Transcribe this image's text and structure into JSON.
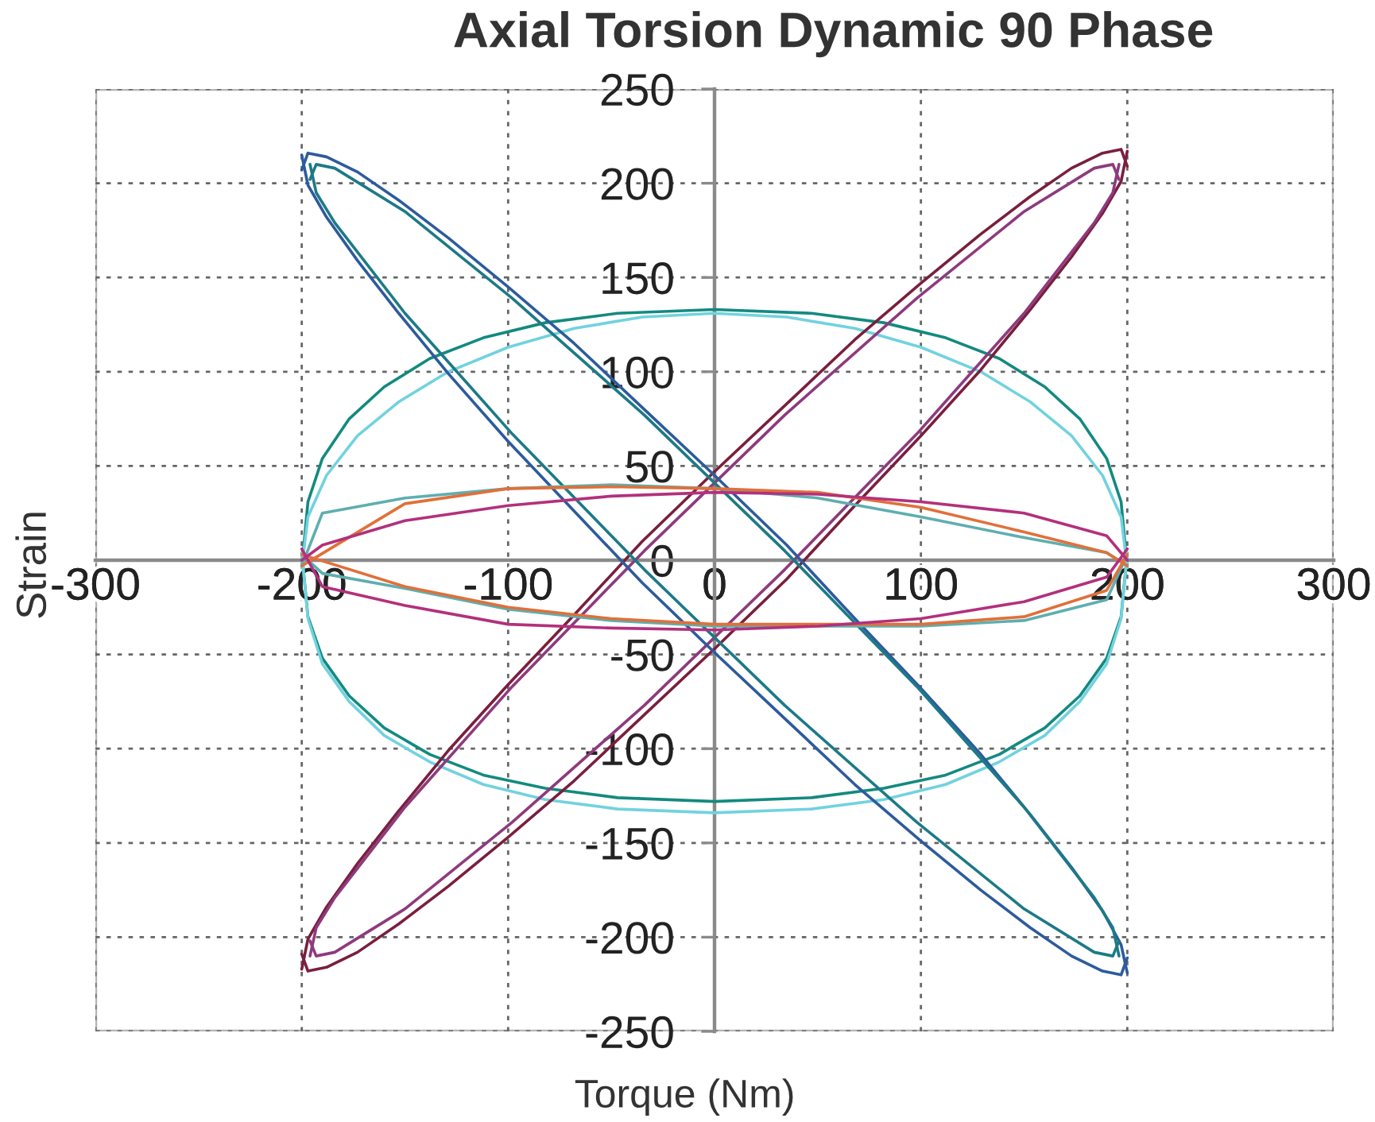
{
  "chart_data": {
    "type": "line",
    "title": "Axial Torsion Dynamic 90 Phase",
    "xlabel": "Torque (Nm)",
    "ylabel": "Strain",
    "xlim": [
      -300,
      300
    ],
    "ylim": [
      -250,
      250
    ],
    "xticks": [
      -300,
      -200,
      -100,
      0,
      100,
      200,
      300
    ],
    "yticks": [
      -250,
      -200,
      -150,
      -100,
      -50,
      0,
      50,
      100,
      150,
      200,
      250
    ],
    "grid": true,
    "series": [
      {
        "color": "#138a7f",
        "x": [
          -200,
          -197,
          -190,
          -177,
          -160,
          -138,
          -112,
          -82,
          -47,
          0,
          47,
          82,
          112,
          138,
          160,
          177,
          190,
          197,
          200
        ],
        "values": [
          -4,
          31,
          54,
          75,
          92,
          107,
          118,
          126,
          131,
          133,
          131,
          126,
          118,
          107,
          92,
          75,
          54,
          31,
          -4
        ]
      },
      {
        "color": "#138a7f",
        "x": [
          -200,
          -197,
          -190,
          -177,
          -160,
          -138,
          -112,
          -82,
          -47,
          0,
          47,
          82,
          112,
          138,
          160,
          177,
          190,
          197,
          200
        ],
        "values": [
          4,
          -30,
          -52,
          -72,
          -89,
          -103,
          -114,
          -121,
          -126,
          -128,
          -126,
          -121,
          -114,
          -103,
          -89,
          -72,
          -52,
          -30,
          4
        ]
      },
      {
        "color": "#72d2df",
        "x": [
          -200,
          -197,
          -188,
          -173,
          -153,
          -129,
          -100,
          -68,
          -35,
          0,
          35,
          68,
          100,
          129,
          153,
          173,
          188,
          197,
          200
        ],
        "values": [
          -4,
          23,
          45,
          66,
          84,
          100,
          113,
          123,
          129,
          131,
          129,
          123,
          113,
          100,
          84,
          66,
          45,
          23,
          -4
        ]
      },
      {
        "color": "#72d2df",
        "x": [
          -200,
          -197,
          -190,
          -177,
          -160,
          -138,
          -112,
          -82,
          -47,
          0,
          47,
          82,
          112,
          138,
          160,
          177,
          190,
          197,
          200
        ],
        "values": [
          4,
          -31,
          -55,
          -75,
          -93,
          -107,
          -119,
          -127,
          -132,
          -134,
          -132,
          -127,
          -119,
          -107,
          -93,
          -75,
          -55,
          -31,
          4
        ]
      },
      {
        "color": "#7a1f3d",
        "x": [
          -200,
          -197,
          -188,
          -173,
          -153,
          -129,
          -100,
          -68,
          -35,
          0,
          35,
          68,
          100,
          129,
          153,
          173,
          188,
          197,
          200
        ],
        "values": [
          -217,
          -201,
          -184,
          -161,
          -133,
          -101,
          -66,
          -29,
          10,
          47,
          83,
          117,
          147,
          173,
          193,
          208,
          216,
          218,
          209
        ]
      },
      {
        "color": "#7a1f3d",
        "x": [
          -200,
          -197,
          -188,
          -173,
          -153,
          -129,
          -100,
          -68,
          -35,
          0,
          35,
          68,
          100,
          129,
          153,
          173,
          188,
          197,
          200
        ],
        "values": [
          -209,
          -218,
          -216,
          -208,
          -193,
          -173,
          -147,
          -117,
          -83,
          -47,
          -10,
          29,
          66,
          101,
          133,
          161,
          184,
          201,
          217
        ]
      },
      {
        "color": "#8e3a7e",
        "x": [
          -196,
          -193,
          -184,
          -150,
          -98,
          -34,
          34,
          98,
          150,
          184,
          193,
          196
        ],
        "values": [
          -210,
          -195,
          -179,
          -131,
          -67,
          5,
          77,
          139,
          185,
          208,
          210,
          202
        ]
      },
      {
        "color": "#8e3a7e",
        "x": [
          -196,
          -193,
          -184,
          -150,
          -98,
          -34,
          34,
          98,
          150,
          184,
          193,
          196
        ],
        "values": [
          -202,
          -210,
          -208,
          -185,
          -139,
          -77,
          -5,
          67,
          131,
          179,
          195,
          210
        ]
      },
      {
        "color": "#2d5b9c",
        "x": [
          -200,
          -197,
          -188,
          -173,
          -153,
          -129,
          -100,
          -68,
          -35,
          0,
          35,
          68,
          100,
          129,
          153,
          173,
          188,
          197,
          200
        ],
        "values": [
          207,
          216,
          214,
          206,
          191,
          171,
          145,
          115,
          81,
          45,
          8,
          -31,
          -68,
          -103,
          -135,
          -163,
          -186,
          -204,
          -219
        ]
      },
      {
        "color": "#2d5b9c",
        "x": [
          -200,
          -197,
          -188,
          -173,
          -153,
          -129,
          -100,
          -68,
          -35,
          0,
          35,
          68,
          100,
          129,
          153,
          173,
          188,
          197,
          200
        ],
        "values": [
          215,
          199,
          182,
          159,
          131,
          99,
          63,
          26,
          -12,
          -49,
          -85,
          -119,
          -149,
          -175,
          -195,
          -210,
          -218,
          -220,
          -211
        ]
      },
      {
        "color": "#1c7a86",
        "x": [
          -196,
          -193,
          -184,
          -150,
          -98,
          -34,
          34,
          98,
          150,
          184,
          193,
          196
        ],
        "values": [
          202,
          210,
          208,
          185,
          139,
          77,
          5,
          -67,
          -131,
          -179,
          -195,
          -210
        ]
      },
      {
        "color": "#1c7a86",
        "x": [
          -196,
          -193,
          -184,
          -150,
          -98,
          -34,
          34,
          98,
          150,
          184,
          193,
          196
        ],
        "values": [
          210,
          195,
          179,
          131,
          67,
          -5,
          -77,
          -139,
          -185,
          -208,
          -210,
          -202
        ]
      },
      {
        "color": "#5eaeb0",
        "x": [
          -200,
          -190,
          -150,
          -100,
          -50,
          0,
          50,
          100,
          150,
          190,
          200
        ],
        "values": [
          -3,
          25,
          33,
          38,
          40,
          38,
          33,
          23,
          12,
          4,
          -3
        ]
      },
      {
        "color": "#5eaeb0",
        "x": [
          -200,
          -190,
          -150,
          -100,
          -50,
          0,
          50,
          100,
          150,
          190,
          200
        ],
        "values": [
          3,
          -7,
          -15,
          -26,
          -32,
          -35,
          -35,
          -35,
          -32,
          -21,
          3
        ]
      },
      {
        "color": "#e0703a",
        "x": [
          -200,
          -150,
          -100,
          -50,
          0,
          50,
          100,
          150,
          190,
          200
        ],
        "values": [
          -3,
          30,
          38,
          39,
          38,
          36,
          28,
          15,
          4,
          -3
        ]
      },
      {
        "color": "#e0703a",
        "x": [
          -200,
          -150,
          -100,
          -50,
          0,
          50,
          100,
          150,
          190,
          200
        ],
        "values": [
          3,
          -14,
          -25,
          -31,
          -34,
          -34,
          -34,
          -30,
          -16,
          3
        ]
      },
      {
        "color": "#b3307c",
        "x": [
          -200,
          -190,
          -150,
          -100,
          -50,
          0,
          50,
          100,
          150,
          190,
          200
        ],
        "values": [
          0,
          8,
          21,
          29,
          34,
          36,
          35,
          31,
          25,
          13,
          0
        ]
      },
      {
        "color": "#b3307c",
        "x": [
          -200,
          -190,
          -150,
          -100,
          -50,
          0,
          50,
          100,
          150,
          190,
          200
        ],
        "values": [
          6,
          -14,
          -24,
          -34,
          -36,
          -37,
          -35,
          -31,
          -22,
          -9,
          6
        ]
      }
    ]
  }
}
